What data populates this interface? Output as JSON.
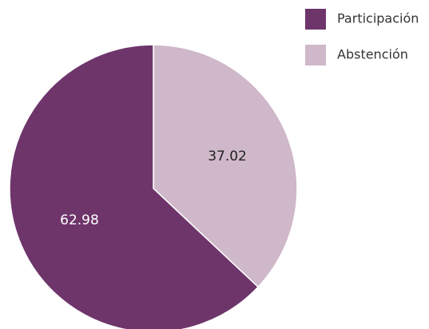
{
  "chart_data": {
    "type": "pie",
    "title": "",
    "start_angle_deg": 0,
    "direction": "clockwise",
    "legend_position": "top-right",
    "slices": [
      {
        "name": "Abstención",
        "value": 37.02,
        "label": "37.02",
        "color": "#cfb8c9",
        "label_color": "#222222"
      },
      {
        "name": "Participación",
        "value": 62.98,
        "label": "62.98",
        "color": "#6e356b",
        "label_color": "#ffffff"
      }
    ],
    "legend": [
      {
        "name": "Participación",
        "color": "#6e356b"
      },
      {
        "name": "Abstención",
        "color": "#cfb8c9"
      }
    ]
  }
}
